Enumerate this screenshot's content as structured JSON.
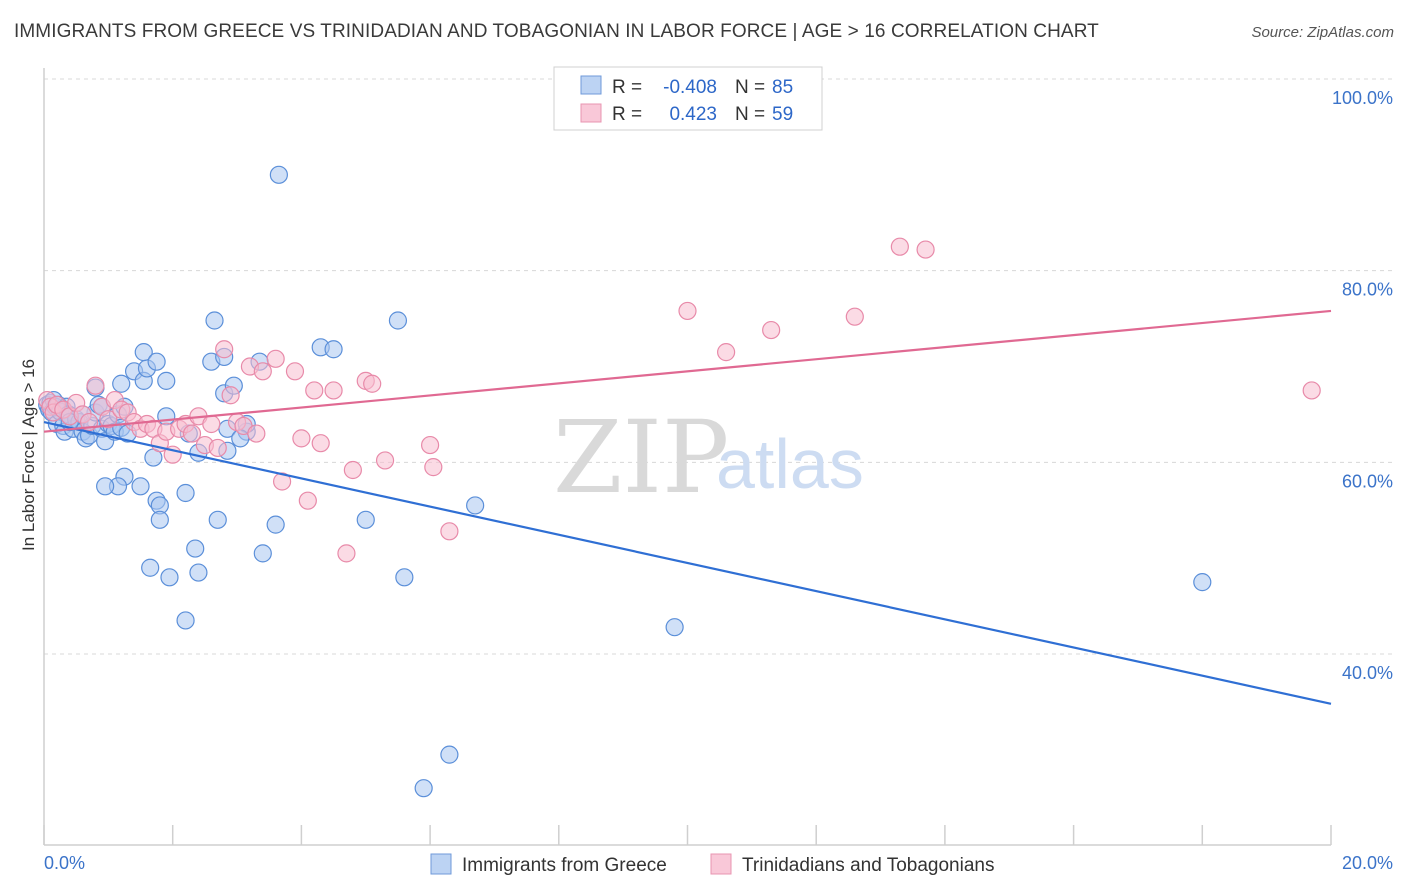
{
  "title": "IMMIGRANTS FROM GREECE VS TRINIDADIAN AND TOBAGONIAN IN LABOR FORCE | AGE > 16 CORRELATION CHART",
  "source": "Source: ZipAtlas.com",
  "watermark": {
    "zip": "ZIP",
    "atlas": "atlas"
  },
  "legend": {
    "r_label": "R =",
    "n_label": "N =",
    "series1": {
      "r": "-0.408",
      "n": "85"
    },
    "series2": {
      "r": "0.423",
      "n": "59"
    }
  },
  "colors": {
    "blue_fill": "#a9c7f0",
    "blue_stroke": "#5b8fd9",
    "blue_line": "#2f6fd4",
    "pink_fill": "#f7bdd0",
    "pink_stroke": "#e88aa9",
    "pink_line": "#e06992",
    "grid": "#d8d8d8",
    "tick_label": "#3b73c9"
  },
  "chart_data": {
    "type": "scatter",
    "xlabel": "",
    "ylabel": "In Labor Force | Age > 16",
    "xlim": [
      0,
      20
    ],
    "ylim": [
      20,
      103
    ],
    "x_tick_labels": [
      "0.0%",
      "20.0%"
    ],
    "y_ticks": [
      40,
      60,
      80,
      100
    ],
    "y_tick_labels": [
      "40.0%",
      "60.0%",
      "80.0%",
      "100.0%"
    ],
    "grid": true,
    "legend_position": "top-center",
    "series": [
      {
        "name": "Immigrants from Greece",
        "color": "blue",
        "trend": {
          "x0": 0.0,
          "y0": 64.2,
          "x1": 20.0,
          "y1": 34.8
        },
        "points": [
          [
            0.05,
            66.0
          ],
          [
            0.08,
            65.5
          ],
          [
            0.1,
            66.2
          ],
          [
            0.12,
            65.2
          ],
          [
            0.15,
            66.5
          ],
          [
            0.18,
            65.8
          ],
          [
            0.2,
            64.0
          ],
          [
            0.22,
            66.0
          ],
          [
            0.25,
            65.3
          ],
          [
            0.3,
            63.8
          ],
          [
            0.32,
            63.2
          ],
          [
            0.35,
            65.8
          ],
          [
            0.38,
            65.0
          ],
          [
            0.4,
            64.8
          ],
          [
            0.45,
            63.5
          ],
          [
            0.5,
            64.5
          ],
          [
            0.55,
            64.2
          ],
          [
            0.6,
            63.2
          ],
          [
            0.65,
            62.5
          ],
          [
            0.7,
            62.8
          ],
          [
            0.75,
            63.8
          ],
          [
            0.8,
            65.2
          ],
          [
            0.85,
            66.0
          ],
          [
            0.9,
            63.5
          ],
          [
            0.95,
            62.2
          ],
          [
            1.0,
            64.0
          ],
          [
            1.05,
            63.8
          ],
          [
            1.1,
            63.2
          ],
          [
            1.15,
            65.0
          ],
          [
            1.2,
            63.6
          ],
          [
            1.25,
            65.8
          ],
          [
            0.8,
            67.8
          ],
          [
            1.2,
            68.2
          ],
          [
            1.4,
            69.5
          ],
          [
            1.55,
            68.5
          ],
          [
            1.6,
            69.8
          ],
          [
            1.55,
            71.5
          ],
          [
            1.75,
            70.5
          ],
          [
            1.9,
            68.5
          ],
          [
            1.9,
            64.8
          ],
          [
            1.7,
            60.5
          ],
          [
            1.5,
            57.5
          ],
          [
            1.25,
            58.5
          ],
          [
            1.15,
            57.5
          ],
          [
            0.95,
            57.5
          ],
          [
            1.75,
            56.0
          ],
          [
            1.8,
            55.5
          ],
          [
            1.8,
            54.0
          ],
          [
            2.2,
            56.8
          ],
          [
            2.35,
            51.0
          ],
          [
            2.4,
            48.5
          ],
          [
            2.7,
            54.0
          ],
          [
            1.65,
            49.0
          ],
          [
            1.95,
            48.0
          ],
          [
            2.2,
            43.5
          ],
          [
            2.65,
            74.8
          ],
          [
            2.6,
            70.5
          ],
          [
            2.8,
            71.0
          ],
          [
            2.8,
            67.2
          ],
          [
            2.85,
            63.5
          ],
          [
            2.95,
            68.0
          ],
          [
            3.15,
            63.2
          ],
          [
            3.35,
            70.5
          ],
          [
            3.15,
            64.0
          ],
          [
            2.4,
            61.0
          ],
          [
            2.85,
            61.2
          ],
          [
            3.65,
            90.0
          ],
          [
            3.6,
            53.5
          ],
          [
            3.4,
            50.5
          ],
          [
            4.3,
            72.0
          ],
          [
            4.5,
            71.8
          ],
          [
            5.0,
            54.0
          ],
          [
            5.5,
            74.8
          ],
          [
            5.6,
            48.0
          ],
          [
            6.7,
            55.5
          ],
          [
            6.3,
            29.5
          ],
          [
            5.9,
            26.0
          ],
          [
            9.8,
            42.8
          ],
          [
            18.0,
            47.5
          ],
          [
            2.25,
            63.0
          ],
          [
            3.05,
            62.5
          ],
          [
            0.6,
            65.0
          ],
          [
            1.3,
            63.0
          ],
          [
            0.4,
            64.2
          ],
          [
            0.9,
            65.8
          ]
        ]
      },
      {
        "name": "Trinidadians and Tobagonians",
        "color": "pink",
        "trend": {
          "x0": 0.0,
          "y0": 63.2,
          "x1": 20.0,
          "y1": 75.8
        },
        "points": [
          [
            0.05,
            66.5
          ],
          [
            0.1,
            65.8
          ],
          [
            0.15,
            65.2
          ],
          [
            0.2,
            66.0
          ],
          [
            0.3,
            65.5
          ],
          [
            0.4,
            64.8
          ],
          [
            0.5,
            66.2
          ],
          [
            0.6,
            65.0
          ],
          [
            0.7,
            64.2
          ],
          [
            0.8,
            68.0
          ],
          [
            0.9,
            65.8
          ],
          [
            1.0,
            64.5
          ],
          [
            1.1,
            66.5
          ],
          [
            1.2,
            65.5
          ],
          [
            1.3,
            65.2
          ],
          [
            1.4,
            64.2
          ],
          [
            1.5,
            63.5
          ],
          [
            1.6,
            64.0
          ],
          [
            1.7,
            63.5
          ],
          [
            1.8,
            62.0
          ],
          [
            1.9,
            63.2
          ],
          [
            2.0,
            60.8
          ],
          [
            2.1,
            63.5
          ],
          [
            2.2,
            64.0
          ],
          [
            2.3,
            63.0
          ],
          [
            2.4,
            64.8
          ],
          [
            2.5,
            61.8
          ],
          [
            2.6,
            64.0
          ],
          [
            2.7,
            61.5
          ],
          [
            2.8,
            71.8
          ],
          [
            2.9,
            67.0
          ],
          [
            3.0,
            64.2
          ],
          [
            3.1,
            63.8
          ],
          [
            3.2,
            70.0
          ],
          [
            3.3,
            63.0
          ],
          [
            3.4,
            69.5
          ],
          [
            3.6,
            70.8
          ],
          [
            3.7,
            58.0
          ],
          [
            3.9,
            69.5
          ],
          [
            4.0,
            62.5
          ],
          [
            4.1,
            56.0
          ],
          [
            4.2,
            67.5
          ],
          [
            4.3,
            62.0
          ],
          [
            4.5,
            67.5
          ],
          [
            4.7,
            50.5
          ],
          [
            4.8,
            59.2
          ],
          [
            5.0,
            68.5
          ],
          [
            5.1,
            68.2
          ],
          [
            5.3,
            60.2
          ],
          [
            6.0,
            61.8
          ],
          [
            6.05,
            59.5
          ],
          [
            6.3,
            52.8
          ],
          [
            10.0,
            75.8
          ],
          [
            10.6,
            71.5
          ],
          [
            11.3,
            73.8
          ],
          [
            12.6,
            75.2
          ],
          [
            13.3,
            82.5
          ],
          [
            13.7,
            82.2
          ],
          [
            19.7,
            67.5
          ]
        ]
      }
    ]
  }
}
